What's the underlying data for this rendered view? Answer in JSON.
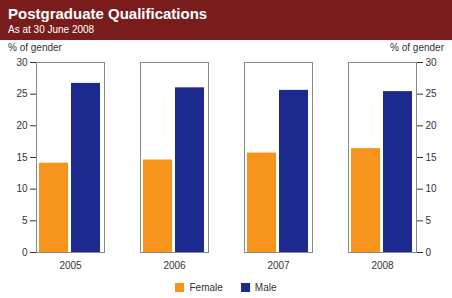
{
  "chart_data": {
    "type": "bar",
    "title": "Postgraduate Qualifications",
    "subtitle": "As at 30 June 2008",
    "categories": [
      "2005",
      "2006",
      "2007",
      "2008"
    ],
    "series": [
      {
        "name": "Female",
        "color": "#f7941d",
        "values": [
          14.1,
          14.6,
          15.7,
          16.4
        ]
      },
      {
        "name": "Male",
        "color": "#1b2a8c",
        "values": [
          26.7,
          26.0,
          25.6,
          25.4
        ]
      }
    ],
    "ylabel": "% of gender",
    "ylim": [
      0,
      30
    ],
    "yticks": [
      0,
      5,
      10,
      15,
      20,
      25,
      30
    ],
    "grid": false,
    "legend": "bottom"
  }
}
